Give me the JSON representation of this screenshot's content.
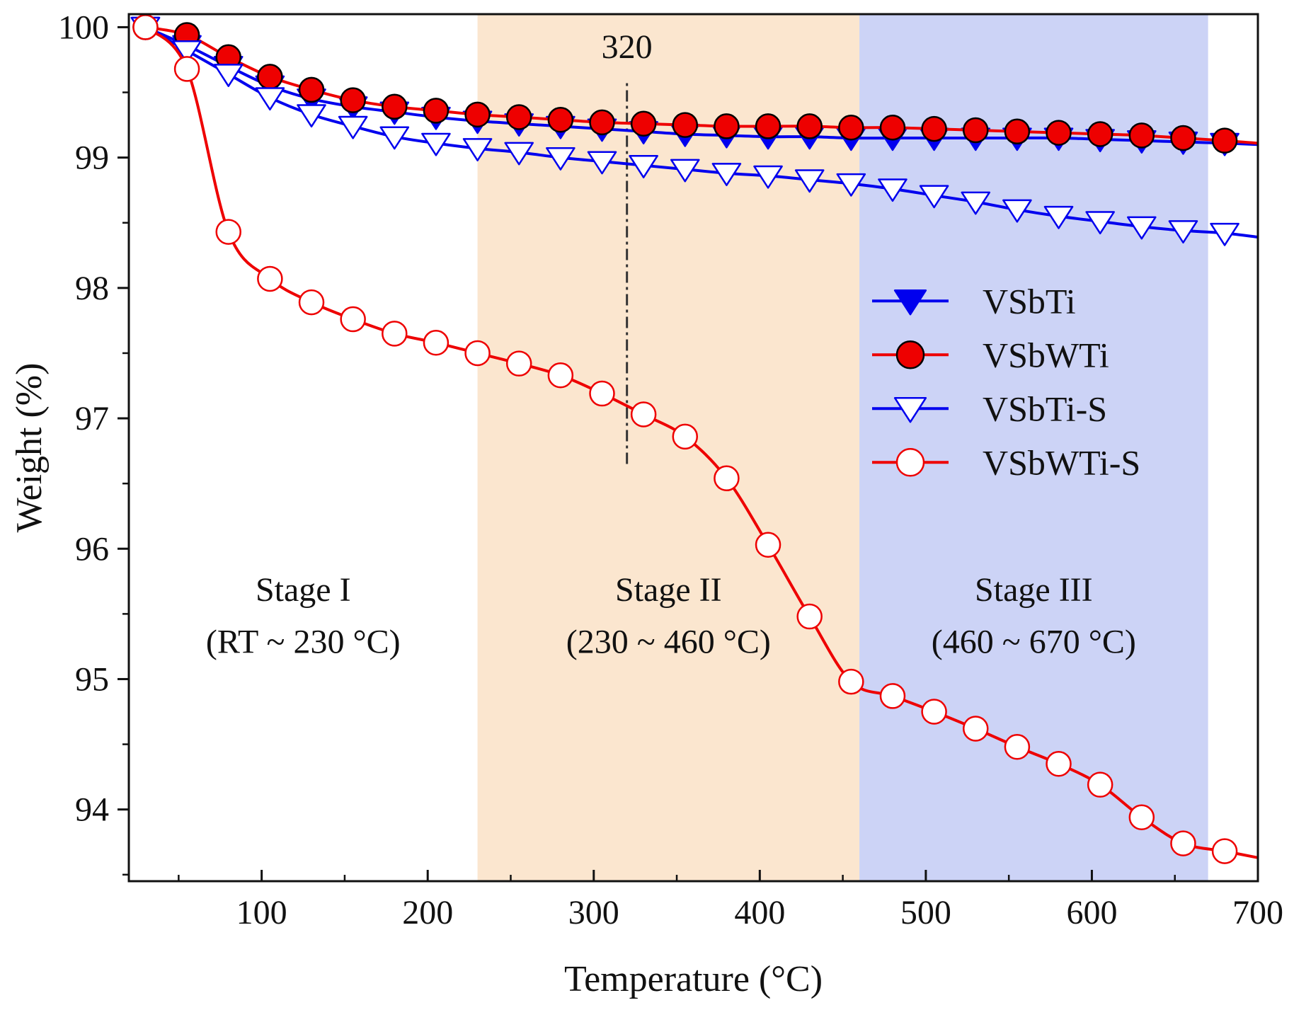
{
  "chart_data": {
    "type": "line",
    "xlabel": "Temperature (°C)",
    "ylabel": "Weight (%)",
    "xlim": [
      20,
      700
    ],
    "ylim": [
      93.45,
      100.1
    ],
    "x_ticks": [
      100,
      200,
      300,
      400,
      500,
      600,
      700
    ],
    "y_ticks": [
      94,
      95,
      96,
      97,
      98,
      99,
      100
    ],
    "grid": false,
    "legend_position": "right",
    "regions": [
      {
        "name": "stage-2",
        "x0": 230,
        "x1": 460,
        "color": "#fbe6cf"
      },
      {
        "name": "stage-3",
        "x0": 460,
        "x1": 670,
        "color": "#ccd3f6"
      }
    ],
    "marker_line": {
      "x": 320,
      "label": "320",
      "y_from": 96.65,
      "y_to": 99.6
    },
    "stage_labels": [
      {
        "title": "Stage I",
        "range": "(RT ~ 230 °C)",
        "x": 125
      },
      {
        "title": "Stage  II",
        "range": "(230 ~ 460 °C)",
        "x": 345
      },
      {
        "title": "Stage  III",
        "range": "(460 ~ 670 °C)",
        "x": 565
      }
    ],
    "series": [
      {
        "name": "VSbTi",
        "color": "#0000ee",
        "marker": "triangle-down-filled",
        "x": [
          30,
          55,
          80,
          105,
          130,
          155,
          180,
          205,
          230,
          255,
          280,
          305,
          330,
          355,
          380,
          405,
          430,
          455,
          480,
          505,
          530,
          555,
          580,
          605,
          630,
          655,
          680,
          700
        ],
        "y": [
          100.0,
          99.86,
          99.7,
          99.55,
          99.45,
          99.39,
          99.35,
          99.31,
          99.28,
          99.26,
          99.24,
          99.22,
          99.2,
          99.18,
          99.17,
          99.16,
          99.16,
          99.15,
          99.15,
          99.15,
          99.15,
          99.15,
          99.15,
          99.14,
          99.13,
          99.12,
          99.11,
          99.1
        ]
      },
      {
        "name": "VSbWTi",
        "color": "#ee0000",
        "marker": "circle-filled",
        "x": [
          30,
          55,
          80,
          105,
          130,
          155,
          180,
          205,
          230,
          255,
          280,
          305,
          330,
          355,
          380,
          405,
          430,
          455,
          480,
          505,
          530,
          555,
          580,
          605,
          630,
          655,
          680,
          700
        ],
        "y": [
          100.0,
          99.94,
          99.77,
          99.62,
          99.52,
          99.44,
          99.39,
          99.36,
          99.33,
          99.31,
          99.29,
          99.27,
          99.26,
          99.25,
          99.24,
          99.24,
          99.24,
          99.23,
          99.23,
          99.22,
          99.21,
          99.2,
          99.19,
          99.18,
          99.17,
          99.15,
          99.13,
          99.11
        ]
      },
      {
        "name": "VSbTi-S",
        "color": "#0000ee",
        "marker": "triangle-down-open",
        "x": [
          30,
          55,
          80,
          105,
          130,
          155,
          180,
          205,
          230,
          255,
          280,
          305,
          330,
          355,
          380,
          405,
          430,
          455,
          480,
          505,
          530,
          555,
          580,
          605,
          630,
          655,
          680,
          700
        ],
        "y": [
          100.0,
          99.82,
          99.64,
          99.46,
          99.33,
          99.24,
          99.16,
          99.11,
          99.07,
          99.04,
          99.0,
          98.97,
          98.94,
          98.91,
          98.88,
          98.86,
          98.83,
          98.8,
          98.76,
          98.71,
          98.66,
          98.6,
          98.55,
          98.51,
          98.47,
          98.44,
          98.42,
          98.39
        ]
      },
      {
        "name": "VSbWTi-S",
        "color": "#ee0000",
        "marker": "circle-open",
        "x": [
          30,
          55,
          80,
          105,
          130,
          155,
          180,
          205,
          230,
          255,
          280,
          305,
          330,
          355,
          380,
          405,
          430,
          455,
          480,
          505,
          530,
          555,
          580,
          605,
          630,
          655,
          680,
          700
        ],
        "y": [
          100.0,
          99.68,
          98.43,
          98.07,
          97.89,
          97.76,
          97.65,
          97.58,
          97.5,
          97.42,
          97.33,
          97.19,
          97.03,
          96.86,
          96.54,
          96.03,
          95.48,
          94.98,
          94.87,
          94.75,
          94.62,
          94.48,
          94.35,
          94.19,
          93.94,
          93.74,
          93.68,
          93.63
        ]
      }
    ]
  }
}
